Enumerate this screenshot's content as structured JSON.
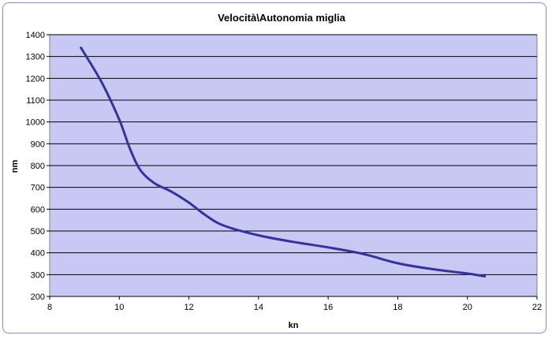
{
  "chart_data": {
    "type": "line",
    "title": "Velocità\\Autonomia miglia",
    "xlabel": "kn",
    "ylabel": "nm",
    "xlim": [
      8,
      22
    ],
    "ylim": [
      200,
      1400
    ],
    "xticks": [
      8,
      10,
      12,
      14,
      16,
      18,
      20,
      22
    ],
    "yticks": [
      200,
      300,
      400,
      500,
      600,
      700,
      800,
      900,
      1000,
      1100,
      1200,
      1300,
      1400
    ],
    "grid": true,
    "legend": "none",
    "series": [
      {
        "color": "#33339a",
        "points": [
          [
            8.9,
            1340
          ],
          [
            9.5,
            1180
          ],
          [
            10.0,
            1010
          ],
          [
            10.3,
            880
          ],
          [
            10.6,
            780
          ],
          [
            11.0,
            720
          ],
          [
            11.5,
            680
          ],
          [
            12.0,
            630
          ],
          [
            12.5,
            570
          ],
          [
            13.0,
            525
          ],
          [
            14.0,
            480
          ],
          [
            15.0,
            450
          ],
          [
            16.0,
            425
          ],
          [
            17.0,
            395
          ],
          [
            18.0,
            352
          ],
          [
            19.0,
            325
          ],
          [
            20.0,
            305
          ],
          [
            20.5,
            292
          ]
        ]
      }
    ]
  },
  "colors": {
    "plot_background": "#c8c8f5",
    "gridline": "#000000",
    "frame_border": "#8a8ac8"
  }
}
